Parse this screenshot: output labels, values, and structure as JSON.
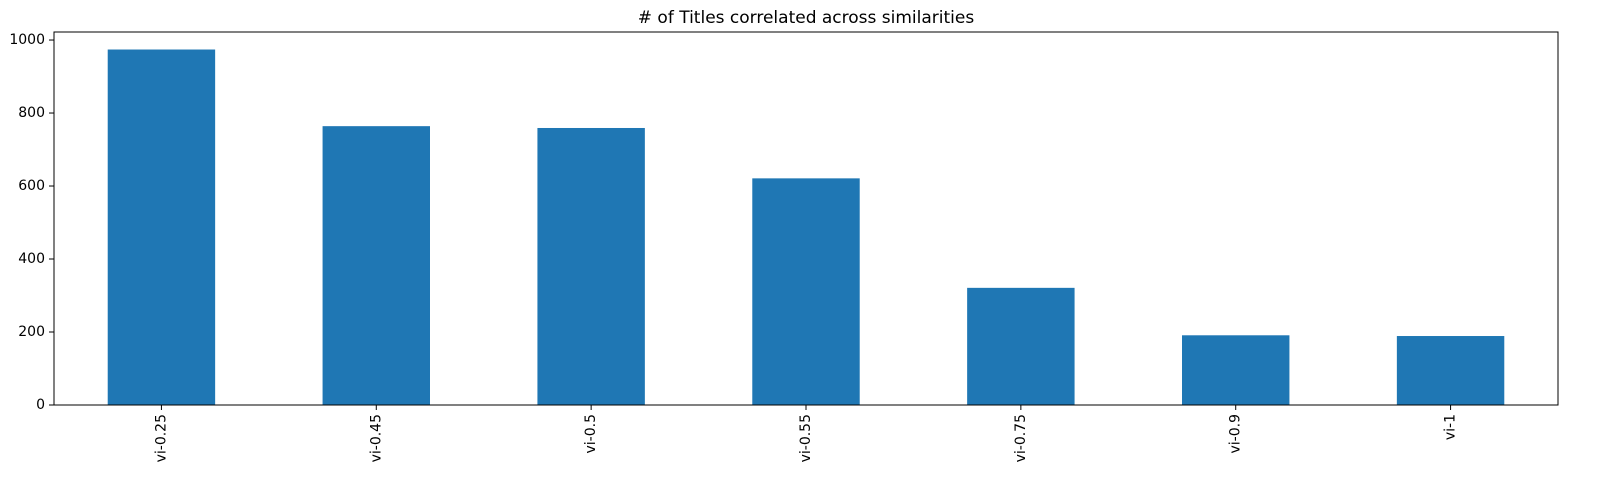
{
  "chart_data": {
    "type": "bar",
    "title": "# of Titles correlated across similarities",
    "xlabel": "",
    "ylabel": "",
    "categories": [
      "vi-0.25",
      "vi-0.45",
      "vi-0.5",
      "vi-0.55",
      "vi-0.75",
      "vi-0.9",
      "vi-1"
    ],
    "values": [
      974,
      764,
      759,
      621,
      321,
      191,
      189
    ],
    "ylim": [
      0,
      1022
    ],
    "yticks": [
      0,
      200,
      400,
      600,
      800,
      1000
    ],
    "bar_color": "#1f77b4",
    "grid": false,
    "legend": false
  }
}
